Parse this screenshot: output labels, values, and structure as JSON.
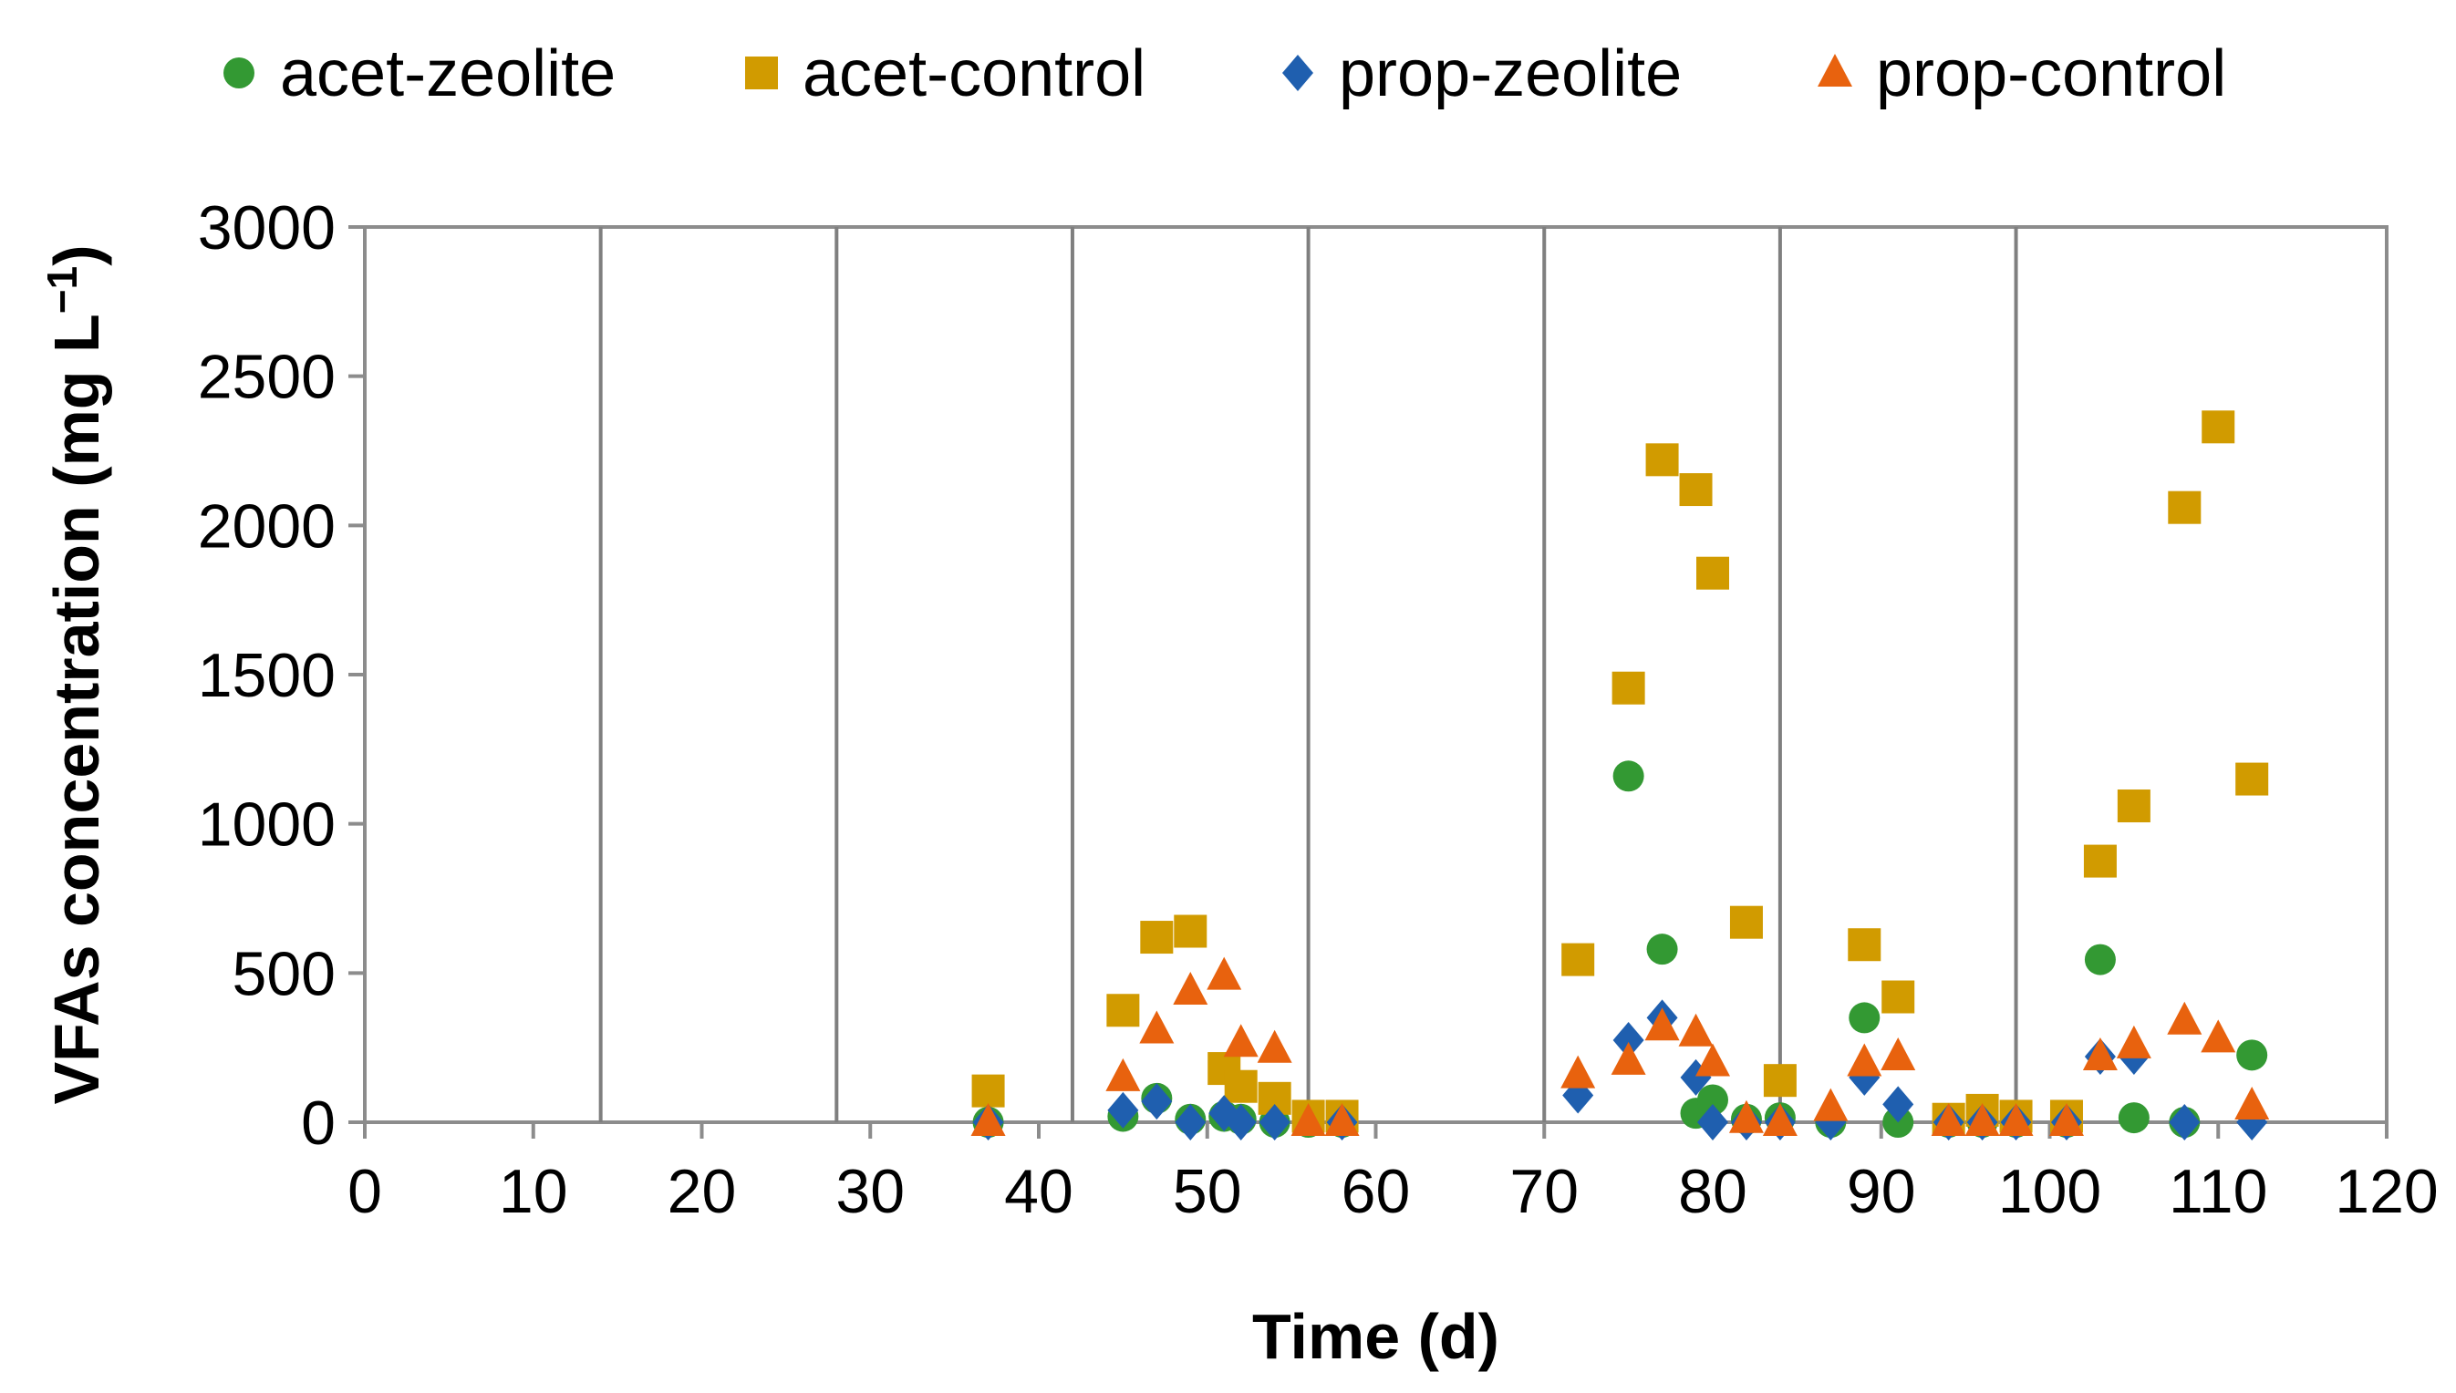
{
  "chart_data": {
    "type": "scatter",
    "xlabel": "Time (d)",
    "ylabel_main": "VFAs concentration  (mg L",
    "ylabel_sup": "−1",
    "ylabel_close": ")",
    "xlim": [
      0,
      120
    ],
    "ylim": [
      0,
      3000
    ],
    "xticks": [
      0,
      10,
      20,
      30,
      40,
      50,
      60,
      70,
      80,
      90,
      100,
      110,
      120
    ],
    "yticks": [
      0,
      500,
      1000,
      1500,
      2000,
      2500,
      3000
    ],
    "xtick_labels": [
      "0",
      "10",
      "20",
      "30",
      "40",
      "50",
      "60",
      "70",
      "80",
      "90",
      "100",
      "110",
      "120"
    ],
    "ytick_labels": [
      "0",
      "500",
      "1000",
      "1500",
      "2000",
      "2500",
      "3000"
    ],
    "vertical_lines": [
      14,
      28,
      42,
      56,
      70,
      84,
      98
    ],
    "legend_position": "top",
    "series": [
      {
        "name": "acet-zeolite",
        "marker": "circle",
        "color": "#339933",
        "points": [
          [
            37,
            0
          ],
          [
            45,
            20
          ],
          [
            47,
            80
          ],
          [
            49,
            10
          ],
          [
            51,
            20
          ],
          [
            52,
            10
          ],
          [
            54,
            0
          ],
          [
            56,
            0
          ],
          [
            58,
            0
          ],
          [
            75,
            1160
          ],
          [
            77,
            580
          ],
          [
            79,
            30
          ],
          [
            80,
            75
          ],
          [
            82,
            10
          ],
          [
            84,
            15
          ],
          [
            87,
            0
          ],
          [
            89,
            350
          ],
          [
            91,
            0
          ],
          [
            94,
            0
          ],
          [
            96,
            0
          ],
          [
            98,
            0
          ],
          [
            101,
            0
          ],
          [
            103,
            545
          ],
          [
            105,
            15
          ],
          [
            108,
            0
          ],
          [
            112,
            225
          ]
        ]
      },
      {
        "name": "acet-control",
        "marker": "square",
        "color": "#D19B00",
        "points": [
          [
            37,
            105
          ],
          [
            45,
            375
          ],
          [
            47,
            620
          ],
          [
            49,
            640
          ],
          [
            51,
            180
          ],
          [
            52,
            120
          ],
          [
            54,
            80
          ],
          [
            56,
            20
          ],
          [
            58,
            20
          ],
          [
            72,
            545
          ],
          [
            75,
            1455
          ],
          [
            77,
            2220
          ],
          [
            79,
            2120
          ],
          [
            80,
            1840
          ],
          [
            82,
            670
          ],
          [
            84,
            140
          ],
          [
            89,
            595
          ],
          [
            91,
            420
          ],
          [
            94,
            10
          ],
          [
            96,
            40
          ],
          [
            98,
            20
          ],
          [
            101,
            20
          ],
          [
            103,
            875
          ],
          [
            105,
            1060
          ],
          [
            108,
            2060
          ],
          [
            110,
            2330
          ],
          [
            112,
            1150
          ]
        ]
      },
      {
        "name": "prop-zeolite",
        "marker": "diamond",
        "color": "#1F5FAF",
        "points": [
          [
            37,
            0
          ],
          [
            45,
            40
          ],
          [
            47,
            70
          ],
          [
            49,
            0
          ],
          [
            51,
            30
          ],
          [
            52,
            0
          ],
          [
            54,
            0
          ],
          [
            58,
            0
          ],
          [
            72,
            90
          ],
          [
            75,
            275
          ],
          [
            77,
            350
          ],
          [
            79,
            150
          ],
          [
            80,
            0
          ],
          [
            82,
            0
          ],
          [
            84,
            0
          ],
          [
            87,
            0
          ],
          [
            89,
            150
          ],
          [
            91,
            60
          ],
          [
            94,
            0
          ],
          [
            96,
            0
          ],
          [
            98,
            0
          ],
          [
            101,
            0
          ],
          [
            103,
            220
          ],
          [
            105,
            220
          ],
          [
            108,
            0
          ],
          [
            112,
            0
          ]
        ]
      },
      {
        "name": "prop-control",
        "marker": "triangle",
        "color": "#E8620E",
        "points": [
          [
            37,
            0
          ],
          [
            45,
            150
          ],
          [
            47,
            310
          ],
          [
            49,
            440
          ],
          [
            51,
            490
          ],
          [
            52,
            265
          ],
          [
            54,
            245
          ],
          [
            56,
            0
          ],
          [
            58,
            0
          ],
          [
            72,
            160
          ],
          [
            75,
            205
          ],
          [
            77,
            320
          ],
          [
            79,
            300
          ],
          [
            80,
            200
          ],
          [
            82,
            10
          ],
          [
            84,
            0
          ],
          [
            87,
            50
          ],
          [
            89,
            200
          ],
          [
            91,
            220
          ],
          [
            94,
            0
          ],
          [
            96,
            0
          ],
          [
            98,
            0
          ],
          [
            101,
            0
          ],
          [
            103,
            220
          ],
          [
            105,
            260
          ],
          [
            108,
            340
          ],
          [
            110,
            280
          ],
          [
            112,
            55
          ]
        ]
      }
    ]
  }
}
